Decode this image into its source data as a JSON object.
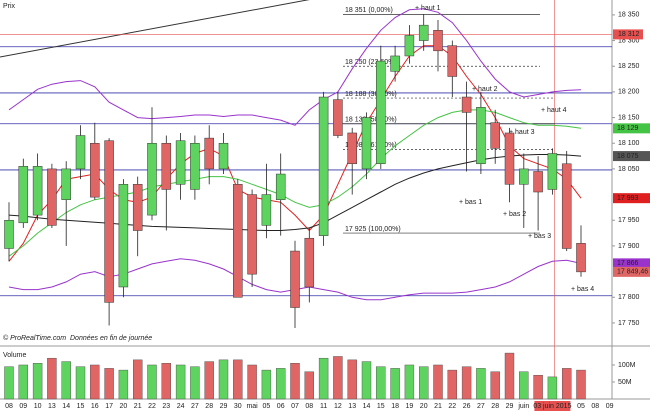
{
  "chart_data": {
    "type": "candlestick",
    "title": "Prix",
    "credit": "© ProRealTime.com",
    "note": "Données en fin de journée",
    "categories": [
      "08",
      "09",
      "10",
      "13",
      "14",
      "15",
      "16",
      "17",
      "20",
      "21",
      "22",
      "23",
      "24",
      "27",
      "28",
      "29",
      "30",
      "mai",
      "05",
      "06",
      "07",
      "08",
      "11",
      "12",
      "13",
      "14",
      "15",
      "18",
      "19",
      "20",
      "21",
      "22",
      "26",
      "27",
      "28",
      "29",
      "juin",
      null,
      "03 juin 2015",
      null,
      "05",
      "08",
      "09"
    ],
    "open": [
      17895,
      17945,
      17960,
      18050,
      17990,
      18050,
      18100,
      18105,
      17820,
      18020,
      17960,
      18100,
      18020,
      18010,
      18110,
      18050,
      18020,
      18000,
      17940,
      17990,
      17890,
      17915,
      17920,
      18185,
      18120,
      18050,
      18060,
      18240,
      18270,
      18300,
      18320,
      18290,
      18190,
      18060,
      18140,
      18120,
      18020,
      18045,
      18010,
      18060,
      17905,
      null,
      null
    ],
    "high": [
      17985,
      18070,
      18080,
      18060,
      18065,
      18135,
      18140,
      18110,
      18030,
      18035,
      18170,
      18115,
      18120,
      18115,
      18135,
      18120,
      18030,
      18010,
      18060,
      18080,
      17910,
      17935,
      18200,
      18200,
      18130,
      18160,
      18290,
      18290,
      18330,
      18351,
      18340,
      18300,
      18220,
      18200,
      18165,
      18130,
      18080,
      18075,
      18090,
      18085,
      17940,
      null,
      null
    ],
    "low": [
      17870,
      17935,
      17950,
      17935,
      17900,
      18030,
      17990,
      17745,
      17800,
      17880,
      17950,
      17930,
      17990,
      17990,
      18020,
      18040,
      17800,
      17820,
      17915,
      17920,
      17740,
      17790,
      17900,
      18110,
      18000,
      18030,
      18050,
      18220,
      18255,
      18280,
      18240,
      18190,
      18045,
      18040,
      18060,
      17985,
      17935,
      17930,
      18000,
      17890,
      17840,
      null,
      null
    ],
    "close": [
      17950,
      18055,
      18055,
      17940,
      18050,
      18115,
      17995,
      17790,
      18020,
      17930,
      18100,
      18010,
      18105,
      18100,
      18050,
      18100,
      17800,
      17845,
      18000,
      18040,
      17780,
      17820,
      18190,
      18115,
      18060,
      18150,
      18260,
      18270,
      18310,
      18330,
      18280,
      18230,
      18160,
      18170,
      18090,
      18020,
      18050,
      18005,
      18080,
      17895,
      17849.46,
      null,
      null
    ],
    "up_color": "#5fd35f",
    "down_color": "#e06666",
    "series": [
      {
        "color": "#e02020",
        "values": [
          17870,
          17905,
          17960,
          17990,
          18030,
          18035,
          18040,
          18010,
          17990,
          17985,
          17995,
          18030,
          18060,
          18080,
          18090,
          18075,
          18010,
          17995,
          17990,
          17985,
          17960,
          17930,
          17960,
          18020,
          18080,
          18140,
          18185,
          18230,
          18270,
          18290,
          18290,
          18270,
          18230,
          18195,
          18150,
          18095,
          18070,
          18060,
          18050,
          18030,
          17993,
          null,
          null
        ]
      },
      {
        "color": "#44c444",
        "values": [
          17880,
          17900,
          17925,
          17945,
          17965,
          17980,
          17990,
          17995,
          18000,
          18005,
          18015,
          18020,
          18025,
          18030,
          18035,
          18035,
          18030,
          18020,
          18010,
          18000,
          17985,
          17975,
          17980,
          17995,
          18015,
          18040,
          18070,
          18095,
          18115,
          18135,
          18150,
          18160,
          18165,
          18165,
          18160,
          18150,
          18140,
          18135,
          18135,
          18133,
          18129,
          null,
          null
        ]
      },
      {
        "color": "#222222",
        "values": [
          17960,
          17958,
          17955,
          17952,
          17950,
          17948,
          17946,
          17944,
          17942,
          17940,
          17938,
          17937,
          17936,
          17935,
          17934,
          17933,
          17932,
          17931,
          17930,
          17930,
          17932,
          17935,
          17945,
          17960,
          17975,
          17990,
          18005,
          18020,
          18032,
          18042,
          18050,
          18056,
          18062,
          18068,
          18072,
          18075,
          18077,
          18078,
          18078,
          18077,
          18075,
          null,
          null
        ]
      },
      {
        "color": "#9933cc",
        "values": [
          18165,
          18185,
          18205,
          18215,
          18220,
          18222,
          18210,
          18180,
          18165,
          18150,
          18148,
          18150,
          18152,
          18155,
          18155,
          18152,
          18155,
          18155,
          18150,
          18145,
          18135,
          18165,
          18185,
          18200,
          18245,
          18285,
          18320,
          18345,
          18360,
          18362,
          18355,
          18335,
          18300,
          18260,
          18225,
          18200,
          18190,
          18195,
          18200,
          18203,
          18204,
          null,
          null
        ]
      },
      {
        "color": "#9933cc",
        "values": [
          17820,
          17815,
          17815,
          17820,
          17830,
          17845,
          17850,
          17840,
          17845,
          17855,
          17865,
          17870,
          17875,
          17872,
          17865,
          17855,
          17840,
          17825,
          17815,
          17810,
          17815,
          17820,
          17815,
          17810,
          17800,
          17795,
          17795,
          17800,
          17805,
          17808,
          17808,
          17808,
          17810,
          17815,
          17820,
          17830,
          17845,
          17860,
          17870,
          17872,
          17866,
          null,
          null
        ]
      }
    ],
    "ylim": [
      17707,
      18379
    ],
    "yticks": [
      {
        "value": 18350,
        "label": "18 350"
      },
      {
        "value": 18300,
        "label": "18 300"
      },
      {
        "value": 18250,
        "label": "18 250"
      },
      {
        "value": 18200,
        "label": "18 200"
      },
      {
        "value": 18150,
        "label": "18 150"
      },
      {
        "value": 18100,
        "label": "18 100"
      },
      {
        "value": 18050,
        "label": "18 050"
      },
      {
        "value": 17950,
        "label": "17 950"
      },
      {
        "value": 17900,
        "label": "17 900"
      },
      {
        "value": 17800,
        "label": "17 800"
      },
      {
        "value": 17750,
        "label": "17 750"
      }
    ],
    "hlines": [
      18288,
      18198,
      18138,
      18048,
      17803
    ],
    "hline_color": "#3333aa",
    "trendline": {
      "from": [
        0,
        18268
      ],
      "to": [
        22,
        18385
      ]
    },
    "crosshair": {
      "index": 38,
      "value": 18312,
      "label": "18 312",
      "color": "#e85050"
    },
    "fib_levels": [
      {
        "value": 18351,
        "label": "18 351 (0,00%)"
      },
      {
        "value": 18250,
        "label": "18 250 (23,60%)"
      },
      {
        "value": 18188,
        "label": "18 188 (38,20%)"
      },
      {
        "value": 18138,
        "label": "18 138 (50,00%)"
      },
      {
        "value": 18088,
        "label": "18 088 (61,80%)"
      },
      {
        "value": 17925,
        "label": "17 925 (100,00%)"
      }
    ],
    "price_markers": [
      {
        "value": 18129,
        "label": "18 129",
        "color": "#44c444"
      },
      {
        "value": 18075,
        "label": "18 075",
        "color": "#555555"
      },
      {
        "value": 17993,
        "label": "17 993",
        "color": "#e02020"
      },
      {
        "value": 17866,
        "label": "17 866",
        "color": "#9933cc"
      },
      {
        "value": 17849.46,
        "label": "17 849,46",
        "color": "#e06666"
      }
    ],
    "annotations": [
      "+ haut 1",
      "+ haut 2",
      "+ haut 3",
      "+ haut 4",
      "+ bas 1",
      "+ bas 2",
      "+ bas 3",
      "+ bas 4"
    ],
    "volume": {
      "title": "Volume",
      "values": [
        95,
        100,
        105,
        120,
        110,
        95,
        100,
        90,
        85,
        115,
        100,
        105,
        100,
        95,
        110,
        115,
        115,
        100,
        85,
        90,
        105,
        80,
        120,
        125,
        115,
        110,
        95,
        90,
        100,
        95,
        100,
        85,
        95,
        90,
        80,
        135,
        80,
        70,
        65,
        90,
        85,
        null,
        null
      ],
      "ylim": [
        0,
        144
      ],
      "yticks": [
        {
          "value": 100,
          "label": "100M"
        },
        {
          "value": 50,
          "label": "50M"
        }
      ]
    }
  }
}
